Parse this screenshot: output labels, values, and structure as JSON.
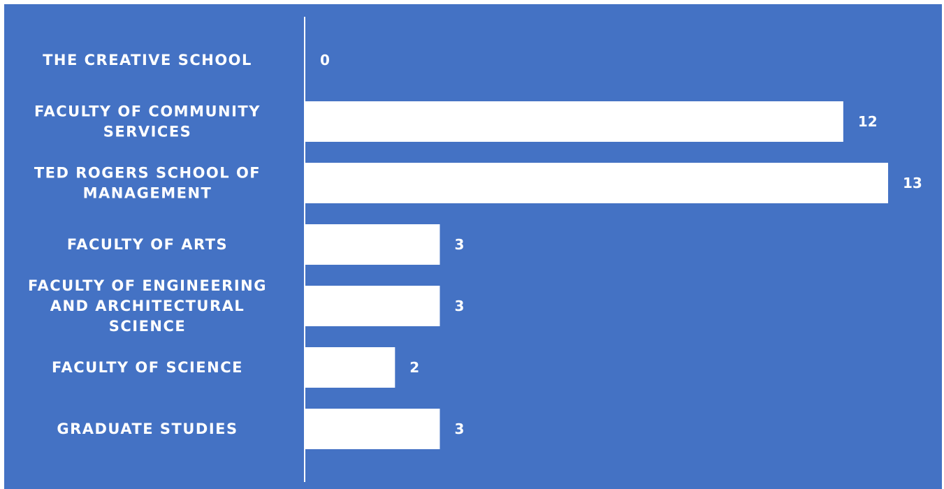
{
  "chart_data": {
    "type": "bar",
    "orientation": "horizontal",
    "categories": [
      [
        "THE CREATIVE SCHOOL"
      ],
      [
        "FACULTY OF COMMUNITY",
        "SERVICES"
      ],
      [
        "TED ROGERS SCHOOL OF",
        "MANAGEMENT"
      ],
      [
        "FACULTY OF ARTS"
      ],
      [
        "FACULTY OF ENGINEERING",
        "AND ARCHITECTURAL",
        "SCIENCE"
      ],
      [
        "FACULTY OF SCIENCE"
      ],
      [
        "GRADUATE STUDIES"
      ]
    ],
    "values": [
      0,
      12,
      13,
      3,
      3,
      2,
      3
    ],
    "xlim": [
      0,
      13
    ],
    "grid": false,
    "legend": "none",
    "colors": {
      "background": "#4472c4",
      "bar": "#ffffff",
      "axis": "#ffffff",
      "text": "#ffffff"
    }
  }
}
